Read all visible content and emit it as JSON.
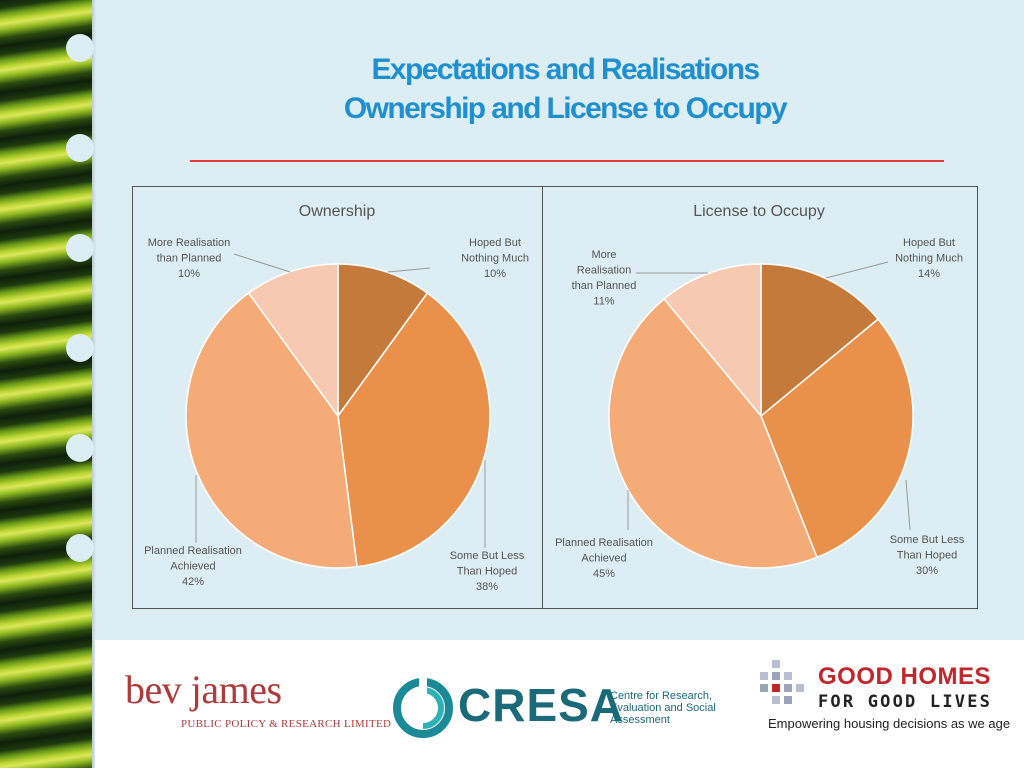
{
  "title": {
    "line1": "Expectations and Realisations",
    "line2": "Ownership and License to Occupy"
  },
  "colors": {
    "hoped_nothing_much": "#c47a3a",
    "some_but_less": "#e9914a",
    "planned_achieved": "#f5ab78",
    "more_than_planned": "#f6c9b0",
    "title_blue": "#1f8fcf",
    "rule_red": "#e03a3a"
  },
  "chart_data": [
    {
      "type": "pie",
      "title": "Ownership",
      "slices": [
        {
          "label_lines": [
            "Hoped But",
            "Nothing Much",
            "10%"
          ],
          "label": "Hoped But Nothing Much",
          "value": 10
        },
        {
          "label_lines": [
            "Some But Less",
            "Than Hoped",
            "38%"
          ],
          "label": "Some But Less Than Hoped",
          "value": 38
        },
        {
          "label_lines": [
            "Planned Realisation",
            "Achieved",
            "42%"
          ],
          "label": "Planned Realisation Achieved",
          "value": 42
        },
        {
          "label_lines": [
            "More Realisation",
            "than Planned",
            "10%"
          ],
          "label": "More Realisation than Planned",
          "value": 10
        }
      ]
    },
    {
      "type": "pie",
      "title": "License to Occupy",
      "slices": [
        {
          "label_lines": [
            "Hoped But",
            "Nothing Much",
            "14%"
          ],
          "label": "Hoped But Nothing Much",
          "value": 14
        },
        {
          "label_lines": [
            "Some But Less",
            "Than Hoped",
            "30%"
          ],
          "label": "Some But Less Than Hoped",
          "value": 30
        },
        {
          "label_lines": [
            "Planned Realisation",
            "Achieved",
            "45%"
          ],
          "label": "Planned Realisation Achieved",
          "value": 45
        },
        {
          "label_lines": [
            "More",
            "Realisation",
            "than Planned",
            "11%"
          ],
          "label": "More Realisation than Planned",
          "value": 11
        }
      ]
    }
  ],
  "logos": {
    "bevjames_name": "bev james",
    "bevjames_sub": "PUBLIC POLICY & RESEARCH LIMITED",
    "cresa_name": "CRESA",
    "cresa_tagline": "Centre for Research, Evaluation and Social Assessment",
    "goodhomes_title": "GOOD HOMES",
    "goodhomes_sub": "FOR GOOD LIVES",
    "goodhomes_tagline": "Empowering housing decisions as we age"
  }
}
